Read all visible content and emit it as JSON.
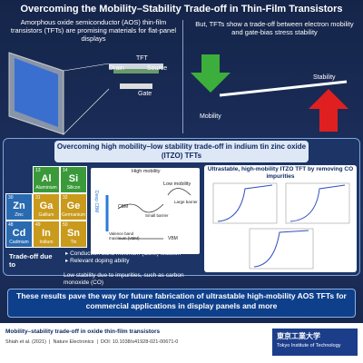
{
  "header": {
    "title": "Overcoming the Mobility–Stability Trade-off in Thin-Film Transistors"
  },
  "left_panel": {
    "text": "Amorphous oxide semiconductor (AOS) thin-film transistors (TFTs) are promising materials for flat-panel displays",
    "labels": [
      "TFT",
      "Drain",
      "Source",
      "Gate"
    ]
  },
  "right_panel": {
    "text": "But, TFTs show a trade-off between electron mobility and gate-bias stress stability",
    "stability": "Stability",
    "mobility": "Mobility"
  },
  "middle": {
    "title": "Overcoming high mobility–low stability trade-off in indium tin zinc oxide (ITZO) TFTs",
    "elements": [
      {
        "number": "13",
        "symbol": "Al",
        "name": "Aluminium"
      },
      {
        "number": "14",
        "symbol": "Si",
        "name": "Silicon"
      },
      {
        "number": "30",
        "symbol": "Zn",
        "name": "Zinc"
      },
      {
        "number": "31",
        "symbol": "Ga",
        "name": "Gallium"
      },
      {
        "number": "32",
        "symbol": "Ge",
        "name": "Germanium"
      },
      {
        "number": "48",
        "symbol": "Cd",
        "name": "Cadmium"
      },
      {
        "number": "49",
        "symbol": "In",
        "name": "Indium"
      },
      {
        "number": "50",
        "symbol": "Sn",
        "name": "Tin"
      }
    ],
    "band": {
      "high": "High mobility",
      "low": "Low mobility",
      "deep": "Deep CBM",
      "cbm": "CBM",
      "small": "Small barrier",
      "large": "Large barrier",
      "vbm_full": "Valence band maximum (VBM)",
      "vbm": "VBM"
    },
    "tradeoff": "Trade-off due to",
    "bullets": [
      "Conduction band minimum (CBM) location",
      "Relevant doping ability"
    ],
    "impurity": "Low stability due to impurities, such as carbon monoxide (CO)",
    "result_title": "Ultrastable, high-mobility ITZO TFT by removing CO impurities"
  },
  "banner": "These results pave the way for future fabrication of ultrastable high-mobility AOS TFTs for commercial applications in display panels and more",
  "footer": {
    "title": "Mobility–stability trade-off in oxide thin-film transistors",
    "authors": "Shiah et al. (2021)",
    "journal": "Nature Electronics",
    "doi": "DOI: 10.1038/s41928-021-00671-0",
    "institute_jp": "東京工業大学",
    "institute_en": "Tokyo Institute of Technology"
  }
}
